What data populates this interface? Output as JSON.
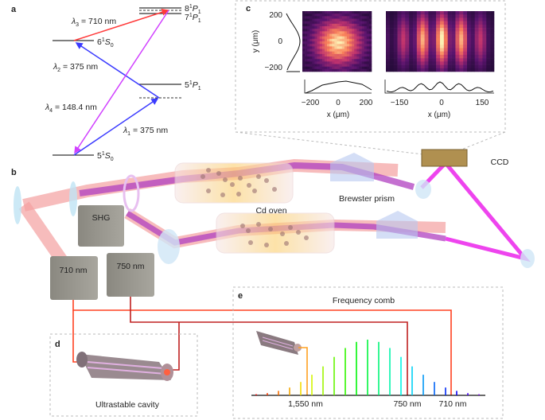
{
  "panel_labels": {
    "a": "a",
    "b": "b",
    "c": "c",
    "d": "d",
    "e": "e"
  },
  "energy_diagram": {
    "levels": {
      "s5": {
        "main": "5",
        "sup": "1",
        "sym": "S",
        "sub": "0"
      },
      "s6": {
        "main": "6",
        "sup": "1",
        "sym": "S",
        "sub": "0"
      },
      "p5": {
        "main": "5",
        "sup": "1",
        "sym": "P",
        "sub": "1"
      },
      "p7": {
        "main": "7",
        "sup": "1",
        "sym": "P",
        "sub": "1"
      },
      "p8": {
        "main": "8",
        "sup": "1",
        "sym": "P",
        "sub": "1"
      }
    },
    "transitions": {
      "l1": {
        "sym": "λ",
        "sub": "1",
        "val": " = 375 nm",
        "color": "#3b3bff"
      },
      "l2": {
        "sym": "λ",
        "sub": "2",
        "val": " = 375 nm",
        "color": "#3b3bff"
      },
      "l3": {
        "sym": "λ",
        "sub": "3",
        "val": " = 710 nm",
        "color": "#ff3b3b"
      },
      "l4": {
        "sym": "λ",
        "sub": "4",
        "val": " = 148.4 nm",
        "color": "#d040ff"
      }
    }
  },
  "imaging": {
    "y_label": "y (μm)",
    "x_label": "x (μm)",
    "left_y_ticks": [
      "200",
      "0",
      "−200"
    ],
    "left_x_ticks": [
      "−200",
      "0",
      "200"
    ],
    "right_x_ticks": [
      "−150",
      "0",
      "150"
    ]
  },
  "setup": {
    "shg": "SHG",
    "laser_710": "710 nm",
    "laser_750": "750 nm",
    "cd_oven": "Cd oven",
    "brewster_prism": "Brewster prism",
    "ccd": "CCD",
    "beam_color_ir": "#f4a0a0",
    "beam_color_uv": "#b040c0",
    "beam_color_vuv": "#ee44ee"
  },
  "cavity": {
    "label": "Ultrastable cavity"
  },
  "comb": {
    "title": "Frequency comb",
    "markers": {
      "m1550": "1,550 nm",
      "m750": "750 nm",
      "m710": "710 nm"
    },
    "relative_amplitudes": [
      0.02,
      0.04,
      0.08,
      0.14,
      0.24,
      0.37,
      0.52,
      0.69,
      0.85,
      0.96,
      1.0,
      0.96,
      0.85,
      0.69,
      0.52,
      0.37,
      0.24,
      0.14,
      0.08,
      0.04,
      0.02
    ]
  }
}
